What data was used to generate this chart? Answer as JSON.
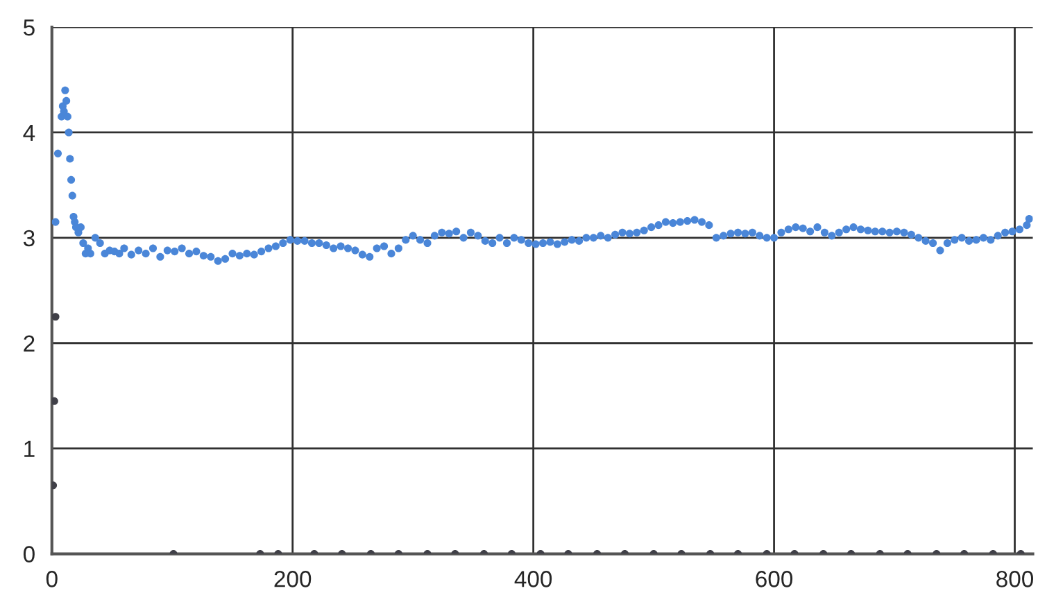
{
  "chart_data": {
    "type": "scatter",
    "xlim": [
      0,
      815
    ],
    "ylim": [
      0,
      5
    ],
    "xticks": [
      0,
      200,
      400,
      600,
      800
    ],
    "yticks": [
      0,
      1,
      2,
      3,
      4,
      5
    ],
    "grid": true,
    "legend": false,
    "marker": "circle",
    "series": [
      {
        "color": "#4a86d8",
        "x": [
          3,
          5,
          8,
          9,
          10,
          11,
          12,
          13,
          14,
          15,
          16,
          17,
          18,
          19,
          20,
          22,
          24,
          26,
          28,
          30,
          32,
          36,
          40,
          44,
          48,
          52,
          56,
          60,
          66,
          72,
          78,
          84,
          90,
          96,
          102,
          108,
          114,
          120,
          126,
          132,
          138,
          144,
          150,
          156,
          162,
          168,
          174,
          180,
          186,
          192,
          198,
          204,
          210,
          216,
          222,
          228,
          234,
          240,
          246,
          252,
          258,
          264,
          270,
          276,
          282,
          288,
          294,
          300,
          306,
          312,
          318,
          324,
          330,
          336,
          342,
          348,
          354,
          360,
          366,
          372,
          378,
          384,
          390,
          396,
          402,
          408,
          414,
          420,
          426,
          432,
          438,
          444,
          450,
          456,
          462,
          468,
          474,
          480,
          486,
          492,
          498,
          504,
          510,
          516,
          522,
          528,
          534,
          540,
          546,
          552,
          558,
          564,
          570,
          576,
          582,
          588,
          594,
          600,
          606,
          612,
          618,
          624,
          630,
          636,
          642,
          648,
          654,
          660,
          666,
          672,
          678,
          684,
          690,
          696,
          702,
          708,
          714,
          720,
          726,
          732,
          738,
          744,
          750,
          756,
          762,
          768,
          774,
          780,
          786,
          792,
          798,
          804,
          810,
          812
        ],
        "values": [
          3.15,
          3.8,
          4.15,
          4.25,
          4.2,
          4.4,
          4.3,
          4.15,
          4.0,
          3.75,
          3.55,
          3.4,
          3.2,
          3.15,
          3.1,
          3.05,
          3.1,
          2.95,
          2.85,
          2.9,
          2.85,
          3.0,
          2.95,
          2.85,
          2.88,
          2.87,
          2.85,
          2.9,
          2.84,
          2.88,
          2.85,
          2.9,
          2.82,
          2.88,
          2.87,
          2.9,
          2.85,
          2.87,
          2.83,
          2.82,
          2.78,
          2.8,
          2.85,
          2.83,
          2.85,
          2.84,
          2.87,
          2.9,
          2.92,
          2.95,
          2.98,
          2.97,
          2.97,
          2.95,
          2.95,
          2.93,
          2.9,
          2.92,
          2.9,
          2.88,
          2.84,
          2.82,
          2.9,
          2.92,
          2.85,
          2.9,
          2.98,
          3.02,
          2.98,
          2.95,
          3.02,
          3.05,
          3.04,
          3.06,
          3.0,
          3.05,
          3.02,
          2.97,
          2.95,
          3.0,
          2.95,
          3.0,
          2.98,
          2.95,
          2.94,
          2.95,
          2.96,
          2.94,
          2.96,
          2.98,
          2.97,
          3.0,
          3.0,
          3.02,
          3.0,
          3.03,
          3.05,
          3.04,
          3.05,
          3.07,
          3.1,
          3.12,
          3.15,
          3.14,
          3.15,
          3.16,
          3.17,
          3.15,
          3.12,
          3.0,
          3.02,
          3.04,
          3.05,
          3.04,
          3.05,
          3.02,
          3.0,
          3.0,
          3.05,
          3.08,
          3.1,
          3.09,
          3.06,
          3.1,
          3.05,
          3.02,
          3.05,
          3.08,
          3.1,
          3.08,
          3.07,
          3.06,
          3.06,
          3.05,
          3.06,
          3.05,
          3.03,
          3.0,
          2.97,
          2.95,
          2.88,
          2.95,
          2.98,
          3.0,
          2.97,
          2.98,
          3.0,
          2.98,
          3.02,
          3.05,
          3.06,
          3.08,
          3.12,
          3.18
        ]
      },
      {
        "color": "#404048",
        "x": [
          1,
          2,
          3,
          101,
          173,
          188,
          218,
          241,
          265,
          288,
          312,
          335,
          359,
          382,
          406,
          429,
          453,
          476,
          500,
          523,
          547,
          570,
          594,
          617,
          641,
          664,
          688,
          711,
          735,
          758,
          782,
          805
        ],
        "values": [
          0.65,
          1.45,
          2.25,
          0,
          0,
          0,
          0,
          0,
          0,
          0,
          0,
          0,
          0,
          0,
          0,
          0,
          0,
          0,
          0,
          0,
          0,
          0,
          0,
          0,
          0,
          0,
          0,
          0,
          0,
          0,
          0,
          0
        ]
      }
    ]
  }
}
